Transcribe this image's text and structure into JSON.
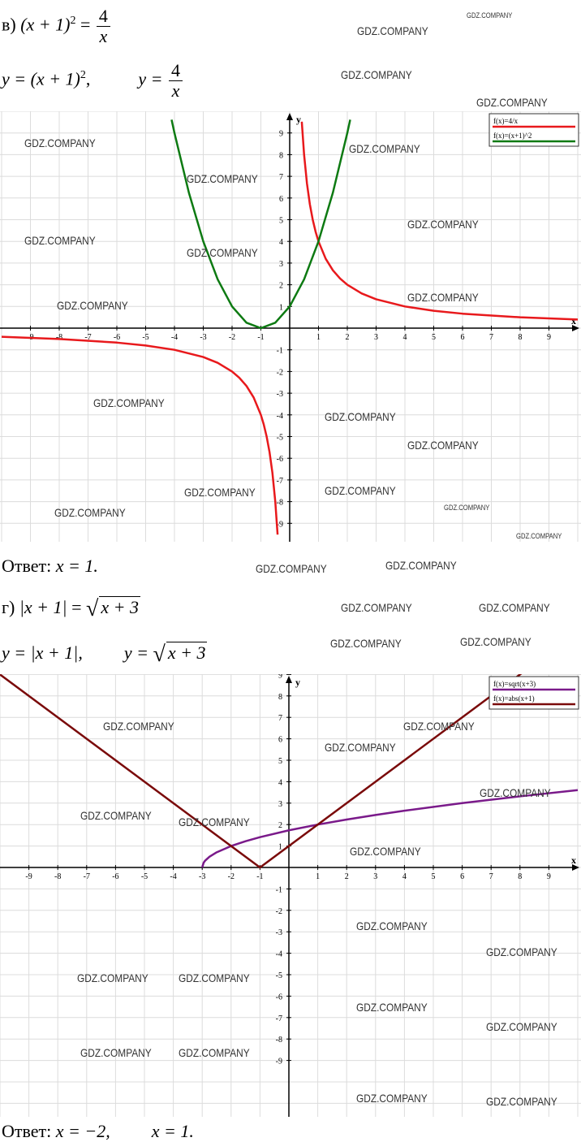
{
  "part_v": {
    "label": "в)",
    "equation": {
      "lhs_base": "(x + 1)",
      "lhs_exp": "2",
      "eq": "=",
      "num": "4",
      "den": "x"
    },
    "functions": {
      "f1_prefix": "y = (x + 1)",
      "f1_exp": "2",
      "f1_suffix": ",",
      "f2_prefix": "y =",
      "f2_num": "4",
      "f2_den": "x"
    },
    "answer": {
      "label": "Ответ:",
      "value": "x = 1."
    }
  },
  "part_g": {
    "label": "г)",
    "equation": {
      "lhs": "|x + 1|",
      "eq": "=",
      "radicand": "x + 3"
    },
    "functions": {
      "f1": "y = |x + 1|,",
      "f2_prefix": "y =",
      "f2_radicand": "x + 3"
    },
    "answer": {
      "label": "Ответ:",
      "value1": "x = −2,",
      "value2": "x = 1."
    }
  },
  "watermark": "GDZ.COMPANY",
  "chart_data": [
    {
      "type": "line",
      "xlabel": "x",
      "ylabel": "y",
      "xlim": [
        -10,
        10
      ],
      "ylim": [
        -10,
        10
      ],
      "xticks": [
        -9,
        -8,
        -7,
        -6,
        -5,
        -4,
        -3,
        -2,
        -1,
        1,
        2,
        3,
        4,
        5,
        6,
        7,
        8,
        9
      ],
      "yticks": [
        9,
        8,
        7,
        6,
        5,
        4,
        3,
        2,
        1,
        -1,
        -2,
        -3,
        -4,
        -5,
        -6,
        -7,
        -8,
        -9
      ],
      "grid": true,
      "legend": "top-right",
      "series": [
        {
          "name": "f(x)=4/x",
          "color": "#e8191c",
          "segments": [
            [
              [
                -10,
                -0.4
              ],
              [
                -8,
                -0.5
              ],
              [
                -6,
                -0.667
              ],
              [
                -5,
                -0.8
              ],
              [
                -4,
                -1
              ],
              [
                -3,
                -1.333
              ],
              [
                -2.5,
                -1.6
              ],
              [
                -2,
                -2
              ],
              [
                -1.75,
                -2.286
              ],
              [
                -1.5,
                -2.667
              ],
              [
                -1.25,
                -3.2
              ],
              [
                -1,
                -4
              ],
              [
                -0.9,
                -4.444
              ],
              [
                -0.8,
                -5
              ],
              [
                -0.7,
                -5.714
              ],
              [
                -0.6,
                -6.667
              ],
              [
                -0.5,
                -8
              ],
              [
                -0.42,
                -9.52
              ]
            ],
            [
              [
                0.42,
                9.52
              ],
              [
                0.5,
                8
              ],
              [
                0.6,
                6.667
              ],
              [
                0.7,
                5.714
              ],
              [
                0.8,
                5
              ],
              [
                0.9,
                4.444
              ],
              [
                1,
                4
              ],
              [
                1.25,
                3.2
              ],
              [
                1.5,
                2.667
              ],
              [
                1.75,
                2.286
              ],
              [
                2,
                2
              ],
              [
                2.5,
                1.6
              ],
              [
                3,
                1.333
              ],
              [
                4,
                1
              ],
              [
                5,
                0.8
              ],
              [
                6,
                0.667
              ],
              [
                8,
                0.5
              ],
              [
                10,
                0.4
              ]
            ]
          ]
        },
        {
          "name": "f(x)=(x+1)^2",
          "color": "#0d7a12",
          "segments": [
            [
              [
                -4.1,
                9.61
              ],
              [
                -4,
                9
              ],
              [
                -3.5,
                6.25
              ],
              [
                -3,
                4
              ],
              [
                -2.5,
                2.25
              ],
              [
                -2,
                1
              ],
              [
                -1.5,
                0.25
              ],
              [
                -1,
                0
              ],
              [
                -0.5,
                0.25
              ],
              [
                0,
                1
              ],
              [
                0.5,
                2.25
              ],
              [
                1,
                4
              ],
              [
                1.5,
                6.25
              ],
              [
                2,
                9
              ],
              [
                2.1,
                9.61
              ]
            ]
          ]
        }
      ]
    },
    {
      "type": "line",
      "xlabel": "x",
      "ylabel": "y",
      "xlim": [
        -10,
        10
      ],
      "ylim": [
        -10,
        10
      ],
      "xticks": [
        -9,
        -8,
        -7,
        -6,
        -5,
        -4,
        -3,
        -2,
        -1,
        1,
        2,
        3,
        4,
        5,
        6,
        7,
        8,
        9
      ],
      "yticks": [
        9,
        8,
        7,
        6,
        5,
        4,
        3,
        2,
        1,
        -1,
        -2,
        -3,
        -4,
        -5,
        -6,
        -7,
        -8,
        -9
      ],
      "grid": true,
      "legend": "top-right",
      "series": [
        {
          "name": "f(x)=sqrt(x+3)",
          "color": "#7a1a8a",
          "segments": [
            [
              [
                -3,
                0
              ],
              [
                -2.95,
                0.224
              ],
              [
                -2.9,
                0.316
              ],
              [
                -2.75,
                0.5
              ],
              [
                -2.5,
                0.707
              ],
              [
                -2,
                1
              ],
              [
                -1.5,
                1.225
              ],
              [
                -1,
                1.414
              ],
              [
                0,
                1.732
              ],
              [
                1,
                2
              ],
              [
                2,
                2.236
              ],
              [
                3,
                2.449
              ],
              [
                4,
                2.646
              ],
              [
                6,
                3
              ],
              [
                8,
                3.317
              ],
              [
                10,
                3.606
              ]
            ]
          ]
        },
        {
          "name": "f(x)=abs(x+1)",
          "color": "#7a0a0a",
          "segments": [
            [
              [
                -10,
                9
              ],
              [
                -1,
                0
              ],
              [
                9.2,
                10.2
              ]
            ]
          ]
        }
      ]
    }
  ]
}
